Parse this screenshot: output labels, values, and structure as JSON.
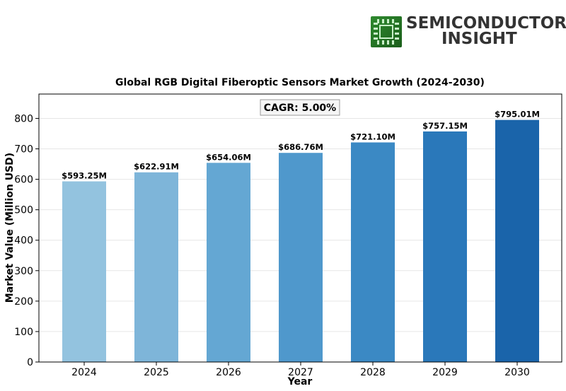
{
  "brand": {
    "line1": "SEMICONDUCTOR",
    "line2": "INSIGHT",
    "icon": "chip-icon"
  },
  "chart_data": {
    "type": "bar",
    "title": "Global RGB Digital Fiberoptic Sensors Market Growth (2024-2030)",
    "xlabel": "Year",
    "ylabel": "Market Value (Million USD)",
    "categories": [
      "2024",
      "2025",
      "2026",
      "2027",
      "2028",
      "2029",
      "2030"
    ],
    "values": [
      593.25,
      622.91,
      654.06,
      686.76,
      721.1,
      757.15,
      795.01
    ],
    "data_labels": [
      "$593.25M",
      "$622.91M",
      "$654.06M",
      "$686.76M",
      "$721.10M",
      "$757.15M",
      "$795.01M"
    ],
    "colors": [
      "#93c3df",
      "#7eb5d9",
      "#64a7d3",
      "#4f98cc",
      "#3b89c4",
      "#2a78ba",
      "#1a64aa"
    ],
    "annotation": "CAGR: 5.00%",
    "ylim": [
      0,
      880
    ],
    "yticks": [
      0,
      100,
      200,
      300,
      400,
      500,
      600,
      700,
      800
    ],
    "grid": true
  }
}
